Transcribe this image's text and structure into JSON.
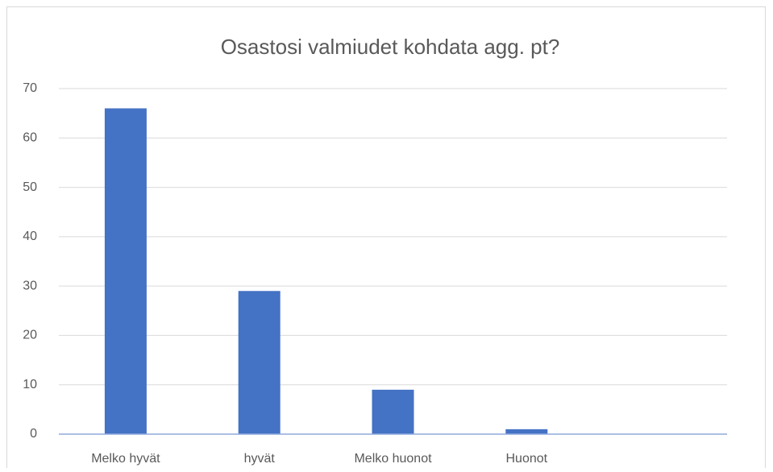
{
  "chart_data": {
    "type": "bar",
    "title": "Osastosi valmiudet kohdata agg. pt?",
    "categories": [
      "Melko hyvät",
      "hyvät",
      "Melko huonot",
      "Huonot",
      null
    ],
    "values": [
      66,
      29,
      9,
      1,
      null
    ],
    "color": "#4472c4",
    "ylim": [
      0,
      70
    ],
    "yticks": [
      0,
      10,
      20,
      30,
      40,
      50,
      60,
      70
    ],
    "grid": true
  }
}
